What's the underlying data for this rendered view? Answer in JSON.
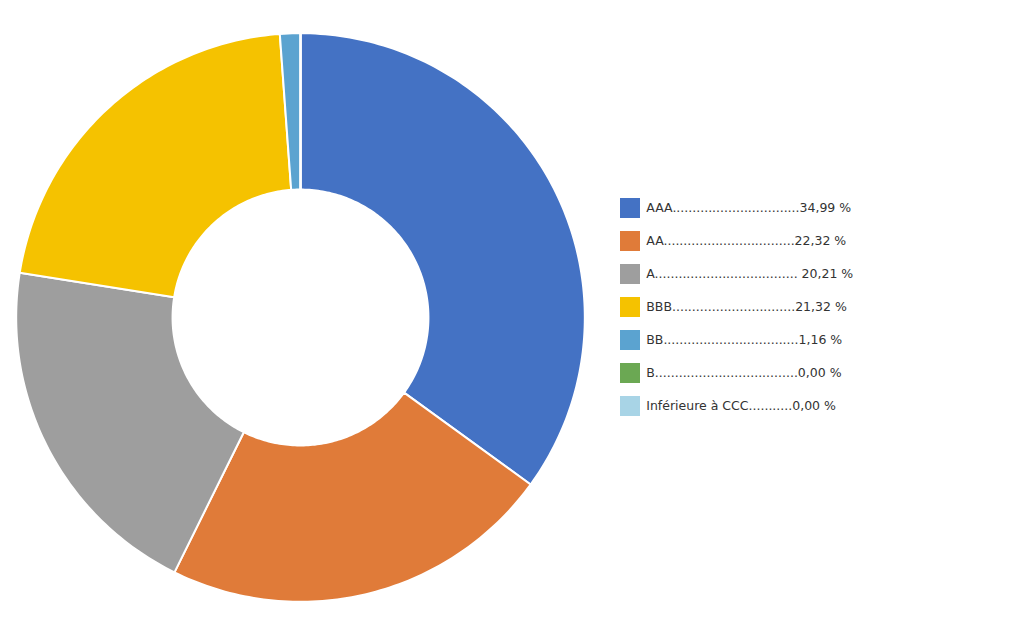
{
  "chart_data": {
    "type": "donut",
    "categories": [
      "AAA................................34,99 %",
      "AA.................................22,32 %",
      "A.................................... 20,21 %",
      "BBB...............................21,32 %",
      "BB..................................1,16 %",
      "B....................................0,00 %",
      "Inférieure à CCC...........0,00 %"
    ],
    "values": [
      34.99,
      22.32,
      20.21,
      21.32,
      1.16,
      0.0,
      0.0
    ],
    "colors": [
      "#4472C4",
      "#E07B39",
      "#9E9E9E",
      "#F5C200",
      "#5BA3D0",
      "#6BA853",
      "#A8D4E6"
    ],
    "legend": "right"
  }
}
